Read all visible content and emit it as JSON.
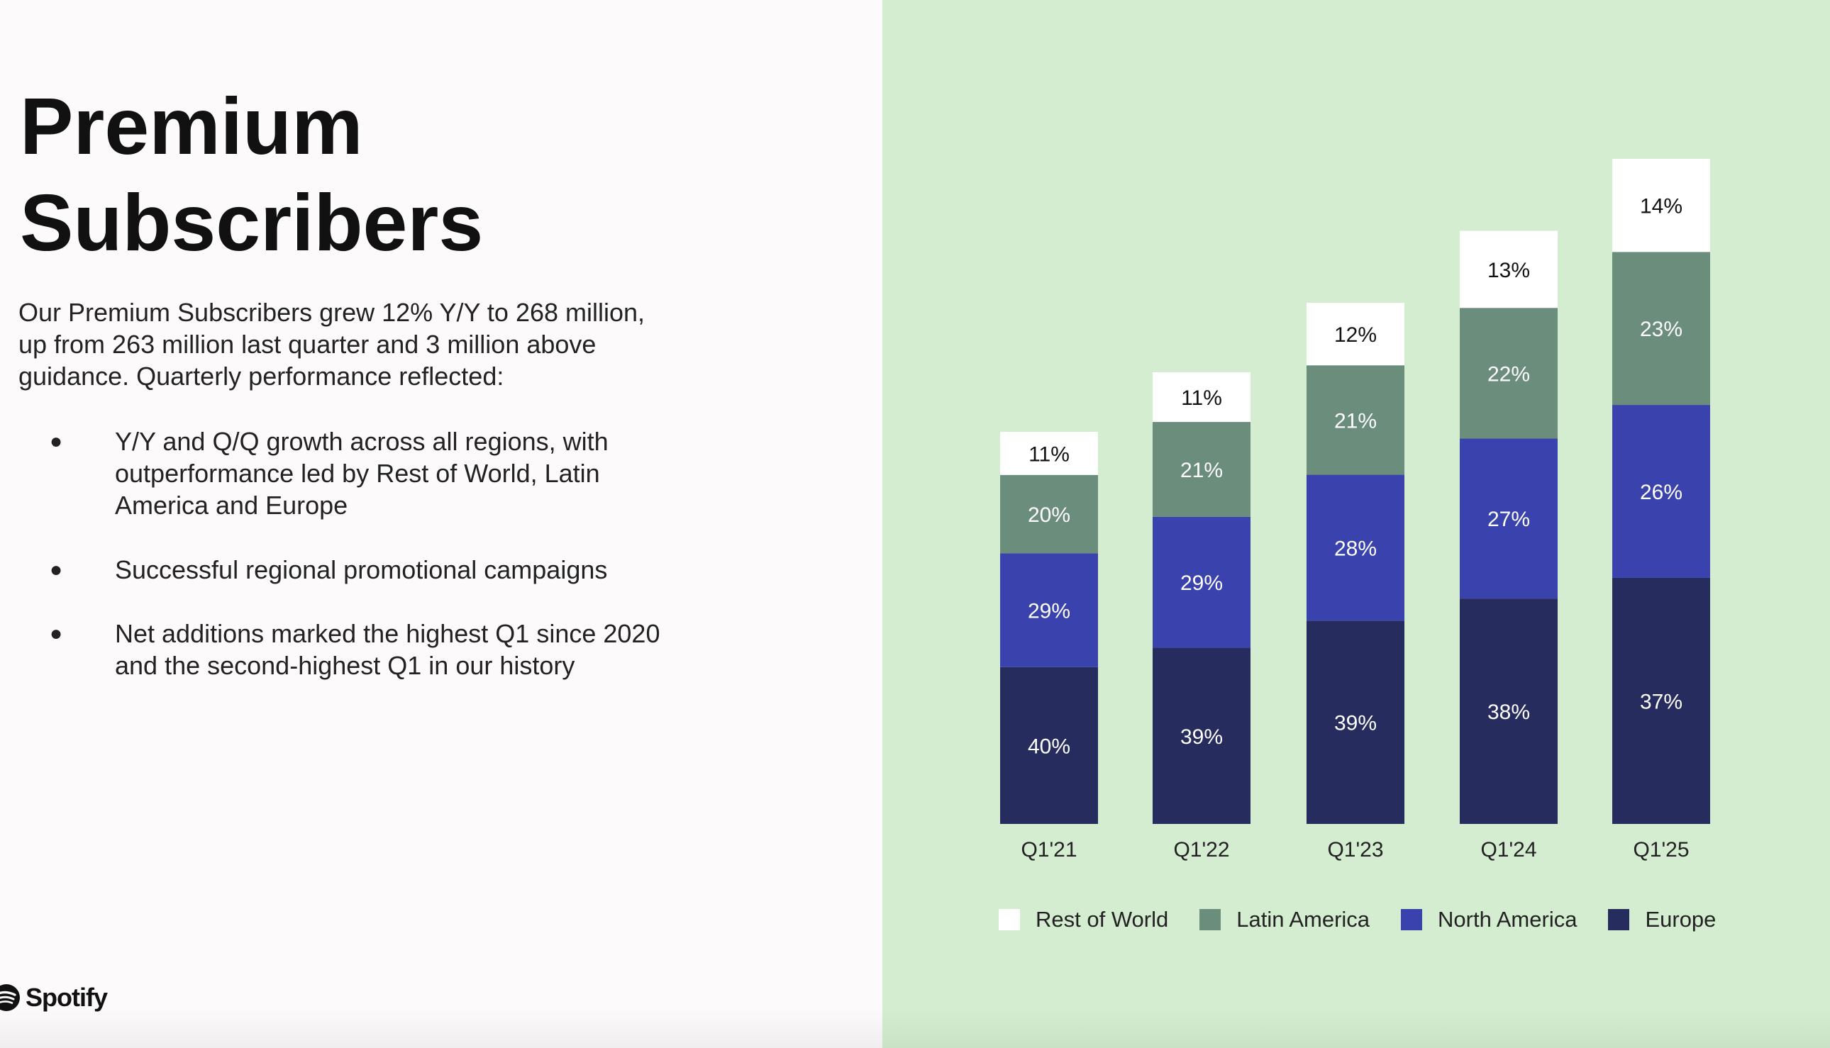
{
  "title_line1": "Premium",
  "title_line2": "Subscribers",
  "intro": "Our Premium Subscribers grew 12% Y/Y to 268 million, up from 263 million last quarter and 3 million above guidance. Quarterly performance reflected:",
  "bullets": [
    {
      "symbol": "●",
      "text": "Y/Y and Q/Q growth across all regions, with outperformance led by Rest of World, Latin America and Europe"
    },
    {
      "symbol": "●",
      "text": "Successful regional promotional campaigns"
    },
    {
      "symbol": "●",
      "text": "Net additions marked the highest Q1 since 2020 and the second-highest Q1 in our history"
    }
  ],
  "logo": {
    "text": "Spotify",
    "icon": "spotify-icon"
  },
  "colors": {
    "europe": "#262c5e",
    "north_america": "#3a43ad",
    "latin_america": "#6b8d7c",
    "rest_of_world": "#ffffff",
    "chart_background": "#d4edd0"
  },
  "chart_data": {
    "type": "bar",
    "stacked": true,
    "categories": [
      "Q1'21",
      "Q1'22",
      "Q1'23",
      "Q1'24",
      "Q1'25"
    ],
    "series": [
      {
        "name": "Europe",
        "values": [
          40,
          39,
          39,
          38,
          37
        ],
        "labels": [
          "40%",
          "39%",
          "39%",
          "38%",
          "37%"
        ]
      },
      {
        "name": "North America",
        "values": [
          29,
          29,
          28,
          27,
          26
        ],
        "labels": [
          "29%",
          "29%",
          "28%",
          "27%",
          "26%"
        ]
      },
      {
        "name": "Latin America",
        "values": [
          20,
          21,
          21,
          22,
          23
        ],
        "labels": [
          "20%",
          "21%",
          "21%",
          "22%",
          "23%"
        ]
      },
      {
        "name": "Rest of World",
        "values": [
          11,
          11,
          12,
          13,
          14
        ],
        "labels": [
          "11%",
          "11%",
          "12%",
          "13%",
          "14%"
        ]
      }
    ],
    "subscribers_millions": [
      158,
      182,
      210,
      239,
      268
    ],
    "legend": [
      "Rest of World",
      "Latin America",
      "North America",
      "Europe"
    ],
    "legend_position": "bottom",
    "grid": false,
    "axes_visible": false
  }
}
